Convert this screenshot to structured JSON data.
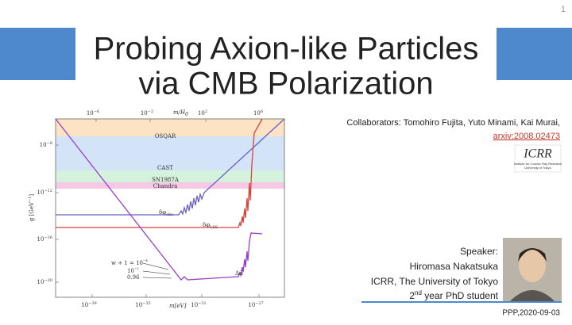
{
  "page_number": "1",
  "title": [
    "Probing Axion-like Particles",
    "via CMB Polarization"
  ],
  "collaborators": "Collaborators: Tomohiro Fujita, Yuto Minami, Kai Murai,",
  "arxiv": "arxiv:2008.02473",
  "logo": {
    "name": "ICRR",
    "subtitle": [
      "Institute for Cosmic Ray Research",
      "University of Tokyo"
    ]
  },
  "speaker": {
    "label": "Speaker:",
    "name": "Hiromasa Nakatsuka",
    "affiliation": "ICRR, The University of Tokyo",
    "year": {
      "number": "2",
      "suffix": "nd",
      "rest": " year PhD student"
    }
  },
  "date": "PPP,2020-09-03",
  "figure": {
    "top_axis_label": "m/H",
    "top_axis_label_sub": "0",
    "top_ticks": [
      {
        "base": "10",
        "exp": "−6"
      },
      {
        "base": "10",
        "exp": "−2"
      },
      {
        "base": "10",
        "exp": "2"
      },
      {
        "base": "10",
        "exp": "6"
      }
    ],
    "bottom_axis_label": "m[eV]",
    "bottom_ticks": [
      {
        "base": "10",
        "exp": "−39"
      },
      {
        "base": "10",
        "exp": "−35"
      },
      {
        "base": "10",
        "exp": "−31"
      },
      {
        "base": "10",
        "exp": "−27"
      }
    ],
    "y_axis_label": "g [GeV",
    "y_axis_label_exp": "−1",
    "y_axis_label_end": "]",
    "left_ticks": [
      {
        "base": "10",
        "exp": "−8"
      },
      {
        "base": "10",
        "exp": "−12"
      },
      {
        "base": "10",
        "exp": "−16"
      },
      {
        "base": "10",
        "exp": "−20"
      }
    ],
    "bands": [
      "OSQAR",
      "CAST",
      "SN1987A",
      "Chandra"
    ],
    "curve_labels": [
      "δφ",
      "δφ",
      "Δφ̃"
    ],
    "curve_label_subs": [
      "obs",
      "LSS",
      ""
    ],
    "w_labels": [
      "w + 1 = 10",
      "10",
      "0.96"
    ],
    "w_label_exps": [
      "−4",
      "−2",
      ""
    ]
  }
}
